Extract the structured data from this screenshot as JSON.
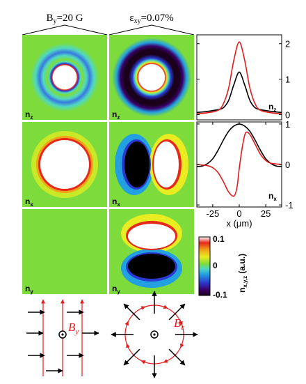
{
  "column_headers": {
    "left": {
      "main": "B",
      "sub": "y",
      "rest": "=20 G"
    },
    "middle": {
      "main": "ε",
      "sub": "xy",
      "rest": "=0.07%"
    }
  },
  "panel_labels": {
    "row1": {
      "main": "n",
      "sub": "z"
    },
    "row2": {
      "main": "n",
      "sub": "x"
    },
    "row3": {
      "main": "n",
      "sub": "y"
    }
  },
  "colorbar": {
    "max_label": "0.1",
    "mid_label": "0",
    "min_label": "-0.1",
    "title_main": "n",
    "title_sub": "x,y,z",
    "title_units": " (a.u.)",
    "min": -0.1,
    "max": 0.1,
    "colors": [
      "#1a001a",
      "#3a006a",
      "#2a3ad0",
      "#22a0e0",
      "#50d8c0",
      "#7ddc3c",
      "#e8ec20",
      "#f2a418",
      "#e6281a",
      "#ffffff"
    ]
  },
  "line_colors": {
    "black": "#000000",
    "red": "#e41a1c"
  },
  "diagram": {
    "left_label": {
      "main": "B",
      "sub": "y"
    },
    "right_label": {
      "main": "B",
      "sub": "ε"
    },
    "arrow_color": "#000000",
    "field_color": "#e41a1c"
  },
  "chart_data": [
    {
      "type": "line",
      "panel": "top",
      "xlim": [
        -40,
        40
      ],
      "ylim": [
        -0.15,
        2.25
      ],
      "yticks": [
        "0",
        "1",
        "2"
      ],
      "ytick_values": [
        0,
        1,
        2
      ],
      "label": {
        "main": "n",
        "sub": "z"
      },
      "series": [
        {
          "color": "#000000",
          "x": [
            -40,
            -30,
            -20,
            -15,
            -10,
            -5,
            0,
            5,
            10,
            15,
            20,
            30,
            40
          ],
          "y": [
            0.06,
            0.09,
            0.14,
            0.19,
            0.4,
            0.85,
            1.2,
            0.85,
            0.4,
            0.19,
            0.14,
            0.09,
            0.06
          ]
        },
        {
          "color": "#e41a1c",
          "x": [
            -40,
            -30,
            -20,
            -15,
            -10,
            -5,
            0,
            5,
            10,
            15,
            20,
            30,
            40
          ],
          "y": [
            0.02,
            0.05,
            0.12,
            0.3,
            0.75,
            1.55,
            2.05,
            1.55,
            0.75,
            0.3,
            0.12,
            0.05,
            0.02
          ]
        }
      ]
    },
    {
      "type": "line",
      "panel": "bottom",
      "xlim": [
        -40,
        40
      ],
      "ylim": [
        -1.05,
        1.05
      ],
      "yticks": [
        "1",
        "0",
        "-1"
      ],
      "ytick_values": [
        1,
        0,
        -1
      ],
      "xticks": [
        "-25",
        "0",
        "25"
      ],
      "xtick_values": [
        -25,
        0,
        25
      ],
      "xlabel": "x (μm)",
      "label": {
        "main": "n",
        "sub": "x"
      },
      "series": [
        {
          "color": "#000000",
          "x": [
            -40,
            -35,
            -30,
            -25,
            -20,
            -15,
            -10,
            -5,
            0,
            5,
            10,
            15,
            20,
            25,
            30,
            35,
            40
          ],
          "y": [
            -0.05,
            -0.04,
            0.02,
            0.14,
            0.35,
            0.6,
            0.82,
            0.95,
            1.0,
            0.95,
            0.82,
            0.6,
            0.35,
            0.14,
            0.02,
            -0.04,
            -0.05
          ]
        },
        {
          "color": "#e41a1c",
          "x": [
            -40,
            -30,
            -25,
            -20,
            -15,
            -10,
            -5,
            -2,
            0,
            3,
            6,
            10,
            15,
            20,
            25,
            30,
            40
          ],
          "y": [
            0.0,
            -0.03,
            -0.08,
            -0.2,
            -0.42,
            -0.68,
            -0.78,
            -0.55,
            -0.1,
            0.45,
            0.78,
            0.74,
            0.5,
            0.25,
            0.1,
            0.03,
            0.0
          ]
        }
      ]
    }
  ]
}
